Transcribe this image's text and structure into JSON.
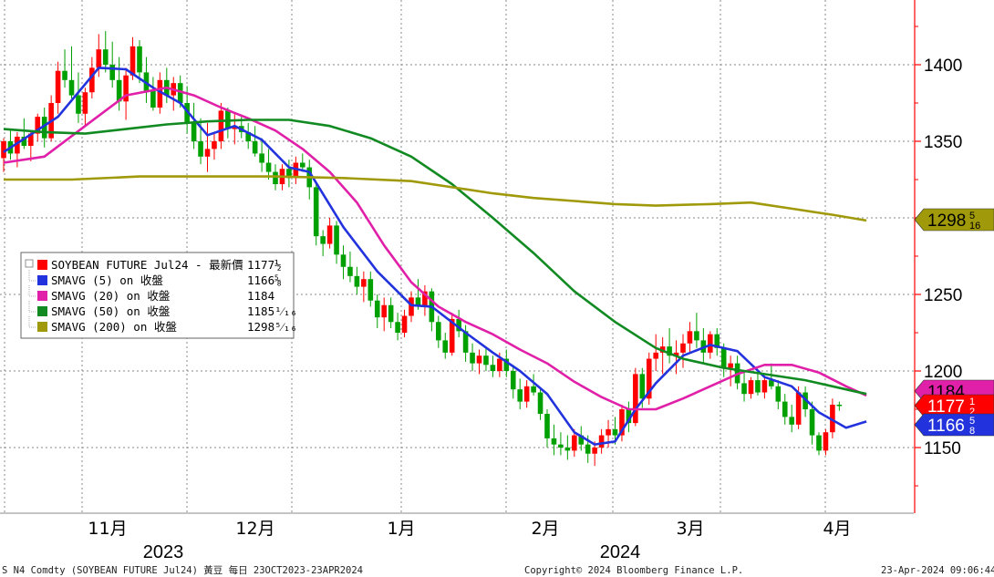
{
  "chart_data": {
    "type": "candlestick",
    "title": "",
    "yaxis": {
      "ticks": [
        1400,
        1350,
        1300,
        1250,
        1200,
        1150
      ],
      "ylim": [
        1105,
        1445
      ],
      "side": "right"
    },
    "xaxis": {
      "months": [
        "11月",
        "12月",
        "1月",
        "2月",
        "3月",
        "4月"
      ],
      "years": [
        "2023",
        "2024"
      ],
      "range": [
        "2023-10-23",
        "2024-04-23"
      ]
    },
    "grid": true,
    "legend": {
      "placement": "left-middle",
      "entries": [
        {
          "name": "SOYBEAN FUTURE Jul24 - 最新價",
          "value": "1177½",
          "color": "#ff0000"
        },
        {
          "name": "SMAVG (5)  on 收盤",
          "value": "1166⅝",
          "color": "#2233dd"
        },
        {
          "name": "SMAVG (20)  on 收盤",
          "value": "1184",
          "color": "#e020a8"
        },
        {
          "name": "SMAVG (50)  on 收盤",
          "value": "1185¹⁄₁₆",
          "color": "#118a22"
        },
        {
          "name": "SMAVG (200)  on 收盤",
          "value": "1298⁵⁄₁₆",
          "color": "#a09a0a"
        }
      ]
    },
    "value_badges": [
      {
        "label": "1298",
        "frac": "5/16",
        "value": 1298.31,
        "bg": "#a09a0a",
        "fg": "#000000"
      },
      {
        "label": "1184",
        "frac": "",
        "value": 1184,
        "bg": "#e020a8",
        "fg": "#000000"
      },
      {
        "label": "1177",
        "frac": "1/2",
        "value": 1177.5,
        "bg": "#ff0000",
        "fg": "#ffffff"
      },
      {
        "label": "1166",
        "frac": "5/8",
        "value": 1166.6,
        "bg": "#2233dd",
        "fg": "#ffffff"
      }
    ],
    "candles": [
      [
        1339,
        1352,
        1330,
        1350
      ],
      [
        1350,
        1358,
        1338,
        1342
      ],
      [
        1342,
        1356,
        1333,
        1353
      ],
      [
        1353,
        1365,
        1345,
        1347
      ],
      [
        1347,
        1357,
        1337,
        1355
      ],
      [
        1355,
        1368,
        1350,
        1366
      ],
      [
        1366,
        1372,
        1346,
        1352
      ],
      [
        1352,
        1380,
        1350,
        1375
      ],
      [
        1375,
        1402,
        1368,
        1396
      ],
      [
        1396,
        1410,
        1385,
        1390
      ],
      [
        1390,
        1412,
        1378,
        1380
      ],
      [
        1380,
        1395,
        1362,
        1368
      ],
      [
        1368,
        1385,
        1360,
        1382
      ],
      [
        1382,
        1405,
        1378,
        1398
      ],
      [
        1398,
        1420,
        1392,
        1410
      ],
      [
        1410,
        1422,
        1395,
        1400
      ],
      [
        1400,
        1415,
        1385,
        1390
      ],
      [
        1390,
        1405,
        1370,
        1376
      ],
      [
        1376,
        1398,
        1364,
        1393
      ],
      [
        1393,
        1418,
        1390,
        1412
      ],
      [
        1412,
        1416,
        1388,
        1395
      ],
      [
        1395,
        1405,
        1375,
        1383
      ],
      [
        1383,
        1392,
        1370,
        1372
      ],
      [
        1372,
        1395,
        1368,
        1390
      ],
      [
        1390,
        1398,
        1375,
        1380
      ],
      [
        1380,
        1392,
        1370,
        1388
      ],
      [
        1388,
        1393,
        1372,
        1375
      ],
      [
        1375,
        1386,
        1355,
        1362
      ],
      [
        1362,
        1375,
        1345,
        1350
      ],
      [
        1350,
        1365,
        1335,
        1340
      ],
      [
        1340,
        1362,
        1330,
        1345
      ],
      [
        1345,
        1355,
        1338,
        1350
      ],
      [
        1350,
        1375,
        1345,
        1370
      ],
      [
        1370,
        1372,
        1352,
        1358
      ],
      [
        1358,
        1368,
        1348,
        1360
      ],
      [
        1360,
        1366,
        1352,
        1356
      ],
      [
        1356,
        1362,
        1345,
        1350
      ],
      [
        1350,
        1360,
        1340,
        1342
      ],
      [
        1342,
        1352,
        1330,
        1336
      ],
      [
        1336,
        1345,
        1325,
        1330
      ],
      [
        1330,
        1335,
        1318,
        1322
      ],
      [
        1322,
        1335,
        1318,
        1332
      ],
      [
        1332,
        1338,
        1320,
        1326
      ],
      [
        1326,
        1340,
        1322,
        1336
      ],
      [
        1336,
        1342,
        1330,
        1333
      ],
      [
        1333,
        1338,
        1312,
        1320
      ],
      [
        1320,
        1322,
        1282,
        1288
      ],
      [
        1288,
        1292,
        1275,
        1283
      ],
      [
        1283,
        1300,
        1280,
        1295
      ],
      [
        1295,
        1298,
        1270,
        1276
      ],
      [
        1276,
        1282,
        1260,
        1268
      ],
      [
        1268,
        1278,
        1258,
        1262
      ],
      [
        1262,
        1268,
        1250,
        1255
      ],
      [
        1255,
        1265,
        1245,
        1260
      ],
      [
        1260,
        1265,
        1242,
        1246
      ],
      [
        1246,
        1250,
        1228,
        1235
      ],
      [
        1235,
        1248,
        1226,
        1243
      ],
      [
        1243,
        1248,
        1228,
        1232
      ],
      [
        1232,
        1238,
        1220,
        1225
      ],
      [
        1225,
        1240,
        1222,
        1236
      ],
      [
        1236,
        1252,
        1232,
        1248
      ],
      [
        1248,
        1260,
        1240,
        1242
      ],
      [
        1242,
        1256,
        1236,
        1252
      ],
      [
        1252,
        1254,
        1226,
        1232
      ],
      [
        1232,
        1236,
        1215,
        1220
      ],
      [
        1220,
        1225,
        1208,
        1212
      ],
      [
        1212,
        1238,
        1210,
        1234
      ],
      [
        1234,
        1240,
        1222,
        1226
      ],
      [
        1226,
        1230,
        1206,
        1212
      ],
      [
        1212,
        1218,
        1200,
        1205
      ],
      [
        1205,
        1214,
        1198,
        1210
      ],
      [
        1210,
        1215,
        1200,
        1204
      ],
      [
        1204,
        1210,
        1196,
        1200
      ],
      [
        1200,
        1212,
        1196,
        1208
      ],
      [
        1208,
        1214,
        1196,
        1200
      ],
      [
        1200,
        1204,
        1182,
        1188
      ],
      [
        1188,
        1195,
        1175,
        1180
      ],
      [
        1180,
        1194,
        1176,
        1190
      ],
      [
        1190,
        1198,
        1184,
        1186
      ],
      [
        1186,
        1188,
        1168,
        1172
      ],
      [
        1172,
        1175,
        1150,
        1156
      ],
      [
        1156,
        1165,
        1145,
        1152
      ],
      [
        1152,
        1160,
        1145,
        1150
      ],
      [
        1150,
        1158,
        1142,
        1148
      ],
      [
        1148,
        1162,
        1144,
        1158
      ],
      [
        1158,
        1164,
        1148,
        1152
      ],
      [
        1152,
        1158,
        1140,
        1146
      ],
      [
        1146,
        1154,
        1138,
        1150
      ],
      [
        1150,
        1162,
        1146,
        1158
      ],
      [
        1158,
        1168,
        1150,
        1162
      ],
      [
        1162,
        1170,
        1152,
        1158
      ],
      [
        1158,
        1178,
        1154,
        1175
      ],
      [
        1175,
        1180,
        1160,
        1166
      ],
      [
        1166,
        1202,
        1164,
        1198
      ],
      [
        1198,
        1202,
        1176,
        1182
      ],
      [
        1182,
        1212,
        1178,
        1208
      ],
      [
        1208,
        1224,
        1200,
        1212
      ],
      [
        1212,
        1222,
        1198,
        1216
      ],
      [
        1216,
        1228,
        1205,
        1210
      ],
      [
        1210,
        1220,
        1198,
        1212
      ],
      [
        1212,
        1224,
        1202,
        1218
      ],
      [
        1218,
        1232,
        1212,
        1226
      ],
      [
        1226,
        1238,
        1215,
        1220
      ],
      [
        1220,
        1228,
        1205,
        1212
      ],
      [
        1212,
        1226,
        1208,
        1224
      ],
      [
        1224,
        1228,
        1210,
        1215
      ],
      [
        1215,
        1218,
        1196,
        1202
      ],
      [
        1202,
        1210,
        1190,
        1205
      ],
      [
        1205,
        1210,
        1188,
        1192
      ],
      [
        1192,
        1200,
        1180,
        1185
      ],
      [
        1185,
        1196,
        1182,
        1194
      ],
      [
        1194,
        1198,
        1184,
        1186
      ],
      [
        1186,
        1196,
        1182,
        1194
      ],
      [
        1194,
        1205,
        1188,
        1190
      ],
      [
        1190,
        1194,
        1175,
        1180
      ],
      [
        1180,
        1185,
        1165,
        1170
      ],
      [
        1170,
        1178,
        1160,
        1165
      ],
      [
        1165,
        1190,
        1162,
        1186
      ],
      [
        1186,
        1190,
        1170,
        1175
      ],
      [
        1175,
        1180,
        1152,
        1158
      ],
      [
        1158,
        1160,
        1145,
        1148
      ],
      [
        1148,
        1162,
        1145,
        1160
      ],
      [
        1160,
        1182,
        1156,
        1178
      ],
      [
        1178,
        1180,
        1174,
        1177.5
      ]
    ],
    "series": [
      {
        "name": "SMAVG (5)",
        "color": "#2233dd",
        "points": [
          [
            0,
            1343
          ],
          [
            8,
            1366
          ],
          [
            14,
            1398
          ],
          [
            18,
            1397
          ],
          [
            22,
            1385
          ],
          [
            26,
            1375
          ],
          [
            30,
            1354
          ],
          [
            34,
            1360
          ],
          [
            38,
            1351
          ],
          [
            42,
            1333
          ],
          [
            45,
            1330
          ],
          [
            50,
            1294
          ],
          [
            55,
            1265
          ],
          [
            60,
            1243
          ],
          [
            63,
            1242
          ],
          [
            68,
            1225
          ],
          [
            72,
            1212
          ],
          [
            76,
            1200
          ],
          [
            80,
            1185
          ],
          [
            84,
            1160
          ],
          [
            87,
            1152
          ],
          [
            90,
            1154
          ],
          [
            93,
            1175
          ],
          [
            96,
            1192
          ],
          [
            100,
            1210
          ],
          [
            104,
            1217
          ],
          [
            108,
            1213
          ],
          [
            112,
            1196
          ],
          [
            116,
            1190
          ],
          [
            120,
            1173
          ],
          [
            124,
            1163
          ],
          [
            127,
            1167
          ]
        ]
      },
      {
        "name": "SMAVG (20)",
        "color": "#e020a8",
        "points": [
          [
            0,
            1336
          ],
          [
            6,
            1340
          ],
          [
            12,
            1360
          ],
          [
            18,
            1380
          ],
          [
            24,
            1385
          ],
          [
            28,
            1380
          ],
          [
            32,
            1372
          ],
          [
            36,
            1365
          ],
          [
            40,
            1357
          ],
          [
            44,
            1345
          ],
          [
            48,
            1330
          ],
          [
            52,
            1310
          ],
          [
            56,
            1282
          ],
          [
            60,
            1258
          ],
          [
            64,
            1242
          ],
          [
            68,
            1232
          ],
          [
            72,
            1224
          ],
          [
            76,
            1214
          ],
          [
            80,
            1205
          ],
          [
            84,
            1193
          ],
          [
            88,
            1183
          ],
          [
            92,
            1175
          ],
          [
            96,
            1175
          ],
          [
            100,
            1182
          ],
          [
            104,
            1190
          ],
          [
            108,
            1198
          ],
          [
            112,
            1204
          ],
          [
            116,
            1204
          ],
          [
            120,
            1199
          ],
          [
            124,
            1190
          ],
          [
            127,
            1184
          ]
        ]
      },
      {
        "name": "SMAVG (50)",
        "color": "#118a22",
        "points": [
          [
            0,
            1358
          ],
          [
            6,
            1356
          ],
          [
            12,
            1355
          ],
          [
            18,
            1358
          ],
          [
            24,
            1361
          ],
          [
            30,
            1363
          ],
          [
            36,
            1364
          ],
          [
            42,
            1364
          ],
          [
            48,
            1360
          ],
          [
            54,
            1352
          ],
          [
            60,
            1340
          ],
          [
            66,
            1322
          ],
          [
            72,
            1300
          ],
          [
            78,
            1277
          ],
          [
            84,
            1252
          ],
          [
            90,
            1232
          ],
          [
            96,
            1215
          ],
          [
            100,
            1208
          ],
          [
            106,
            1202
          ],
          [
            112,
            1198
          ],
          [
            118,
            1194
          ],
          [
            124,
            1188
          ],
          [
            127,
            1185
          ]
        ]
      },
      {
        "name": "SMAVG (200)",
        "color": "#a09a0a",
        "points": [
          [
            0,
            1325
          ],
          [
            10,
            1325
          ],
          [
            20,
            1327
          ],
          [
            30,
            1327
          ],
          [
            40,
            1327
          ],
          [
            50,
            1326
          ],
          [
            60,
            1324
          ],
          [
            66,
            1320
          ],
          [
            72,
            1316
          ],
          [
            78,
            1313
          ],
          [
            84,
            1311
          ],
          [
            90,
            1309
          ],
          [
            96,
            1308
          ],
          [
            104,
            1309
          ],
          [
            110,
            1310
          ],
          [
            116,
            1306
          ],
          [
            122,
            1302
          ],
          [
            127,
            1298.3
          ]
        ]
      }
    ]
  },
  "footer": {
    "left": "S N4 Comdty (SOYBEAN FUTURE   Jul24) 黃豆  每日 23OCT2023-23APR2024",
    "center": "Copyright© 2024 Bloomberg Finance L.P.",
    "right": "23-Apr-2024 09:06:44"
  },
  "colors": {
    "up": "#ff0000",
    "down": "#00a000",
    "axis": "#ff0000",
    "grid": "#8a8a8a"
  }
}
